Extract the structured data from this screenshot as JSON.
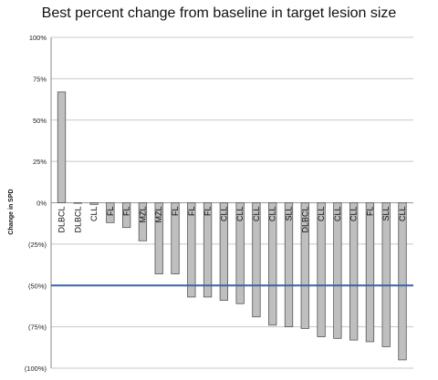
{
  "chart_data": {
    "type": "bar",
    "title": "Best percent change from baseline in target lesion size",
    "ylabel": "Change in SPD",
    "xlabel": "",
    "ylim": [
      -100,
      100
    ],
    "yticks": [
      100,
      75,
      50,
      25,
      0,
      -25,
      -50,
      -75,
      -100
    ],
    "ytick_labels": [
      "100%",
      "75%",
      "50%",
      "25%",
      "0%",
      "(25%)",
      "(50%)",
      "(75%)",
      "(100%)"
    ],
    "grid": "horizontal",
    "categories": [
      "DLBCL",
      "DLBCL",
      "CLL",
      "FL",
      "FL",
      "MZL",
      "MZL",
      "FL",
      "FL",
      "FL",
      "CLL",
      "CLL",
      "CLL",
      "CLL",
      "SLL",
      "DLBCL",
      "CLL",
      "CLL",
      "CLL",
      "FL",
      "SLL",
      "CLL"
    ],
    "values": [
      67,
      0,
      -1,
      -12,
      -15,
      -23,
      -43,
      -43,
      -57,
      -57,
      -59,
      -61,
      -69,
      -74,
      -75,
      -76,
      -81,
      -82,
      -83,
      -84,
      -87,
      -95
    ],
    "reference_line": {
      "value": -50,
      "color": "#3d63a8"
    },
    "bar_color": "#bfbfbf",
    "bar_stroke": "#555555",
    "grid_color": "#c8c8c8"
  }
}
